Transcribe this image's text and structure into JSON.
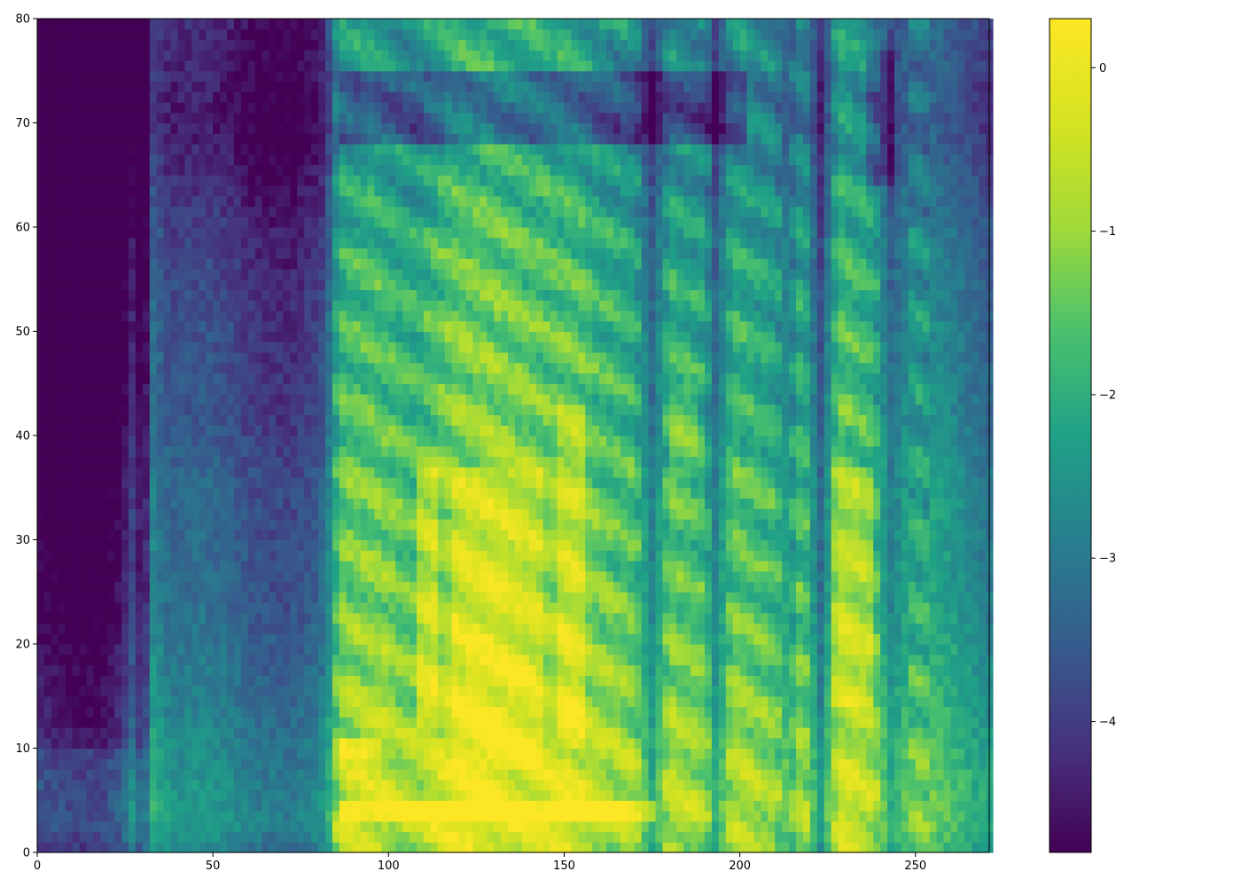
{
  "chart_data": {
    "type": "heatmap",
    "title": "",
    "xlabel": "",
    "ylabel": "",
    "colormap": "viridis",
    "xlim": [
      0,
      271
    ],
    "ylim": [
      0,
      80
    ],
    "grid": false,
    "x_ticks": [
      {
        "value": 0,
        "label": "0"
      },
      {
        "value": 50,
        "label": "50"
      },
      {
        "value": 100,
        "label": "100"
      },
      {
        "value": 150,
        "label": "150"
      },
      {
        "value": 200,
        "label": "200"
      },
      {
        "value": 250,
        "label": "250"
      }
    ],
    "y_ticks": [
      {
        "value": 0,
        "label": "0"
      },
      {
        "value": 10,
        "label": "10"
      },
      {
        "value": 20,
        "label": "20"
      },
      {
        "value": 30,
        "label": "30"
      },
      {
        "value": 40,
        "label": "40"
      },
      {
        "value": 50,
        "label": "50"
      },
      {
        "value": 60,
        "label": "60"
      },
      {
        "value": 70,
        "label": "70"
      },
      {
        "value": 80,
        "label": "80"
      }
    ],
    "colorbar": {
      "range": [
        -4.8,
        0.3
      ],
      "ticks": [
        {
          "value": 0,
          "label": "0"
        },
        {
          "value": -1,
          "label": "−1"
        },
        {
          "value": -2,
          "label": "−2"
        },
        {
          "value": -3,
          "label": "−3"
        },
        {
          "value": -4,
          "label": "−4"
        }
      ]
    },
    "time_profile": [
      [
        0,
        -4.2
      ],
      [
        8,
        -4.4
      ],
      [
        18,
        -4.5
      ],
      [
        24,
        -4.0
      ],
      [
        27,
        -3.3
      ],
      [
        30,
        -4.1
      ],
      [
        33,
        -2.6
      ],
      [
        38,
        -3.1
      ],
      [
        48,
        -3.0
      ],
      [
        55,
        -3.2
      ],
      [
        62,
        -3.5
      ],
      [
        72,
        -3.6
      ],
      [
        79,
        -3.3
      ],
      [
        82,
        -3.0
      ],
      [
        86,
        -1.2
      ],
      [
        96,
        -1.0
      ],
      [
        102,
        -1.2
      ],
      [
        108,
        -1.3
      ],
      [
        118,
        -0.7
      ],
      [
        130,
        -0.6
      ],
      [
        140,
        -0.8
      ],
      [
        148,
        -0.9
      ],
      [
        152,
        -0.8
      ],
      [
        160,
        -1.2
      ],
      [
        170,
        -1.4
      ],
      [
        175,
        -2.6
      ],
      [
        180,
        -1.3
      ],
      [
        190,
        -1.5
      ],
      [
        193,
        -2.6
      ],
      [
        198,
        -1.3
      ],
      [
        210,
        -1.6
      ],
      [
        214,
        -2.2
      ],
      [
        218,
        -1.3
      ],
      [
        223,
        -3.0
      ],
      [
        228,
        -1.0
      ],
      [
        238,
        -1.3
      ],
      [
        243,
        -2.6
      ],
      [
        250,
        -1.8
      ],
      [
        262,
        -2.3
      ],
      [
        271,
        -2.8
      ]
    ],
    "freq_profile": [
      [
        0,
        0.3
      ],
      [
        3,
        0.8
      ],
      [
        9,
        0.5
      ],
      [
        15,
        0.2
      ],
      [
        25,
        -0.2
      ],
      [
        35,
        -0.3
      ],
      [
        42,
        -0.6
      ],
      [
        50,
        -0.7
      ],
      [
        60,
        -1.0
      ],
      [
        70,
        -1.6
      ],
      [
        80,
        -1.3
      ]
    ],
    "bright_bands": [
      {
        "x": [
          86,
          175
        ],
        "y": [
          2.5,
          4.5
        ],
        "amp": 1.3
      },
      {
        "x": [
          86,
          97
        ],
        "y": [
          8.5,
          10.5
        ],
        "amp": 1.4
      },
      {
        "x": [
          108,
          112
        ],
        "y": [
          12,
          36
        ],
        "amp": 1.0
      },
      {
        "x": [
          118,
          142
        ],
        "y": [
          8,
          36
        ],
        "amp": 0.7
      },
      {
        "x": [
          148,
          155
        ],
        "y": [
          10,
          42
        ],
        "amp": 0.8
      },
      {
        "x": [
          226,
          236
        ],
        "y": [
          14,
          36
        ],
        "amp": 0.8
      },
      {
        "x": [
          180,
          186
        ],
        "y": [
          36,
          44
        ],
        "amp": 0.6
      }
    ],
    "dark_bands": [
      {
        "x": [
          86,
          200
        ],
        "y": [
          68,
          74
        ],
        "amp": -1.4
      },
      {
        "x": [
          0,
          30
        ],
        "y": [
          10,
          80
        ],
        "amp": -0.6
      },
      {
        "x": [
          236,
          242
        ],
        "y": [
          64,
          76
        ],
        "amp": -1.0
      }
    ]
  }
}
